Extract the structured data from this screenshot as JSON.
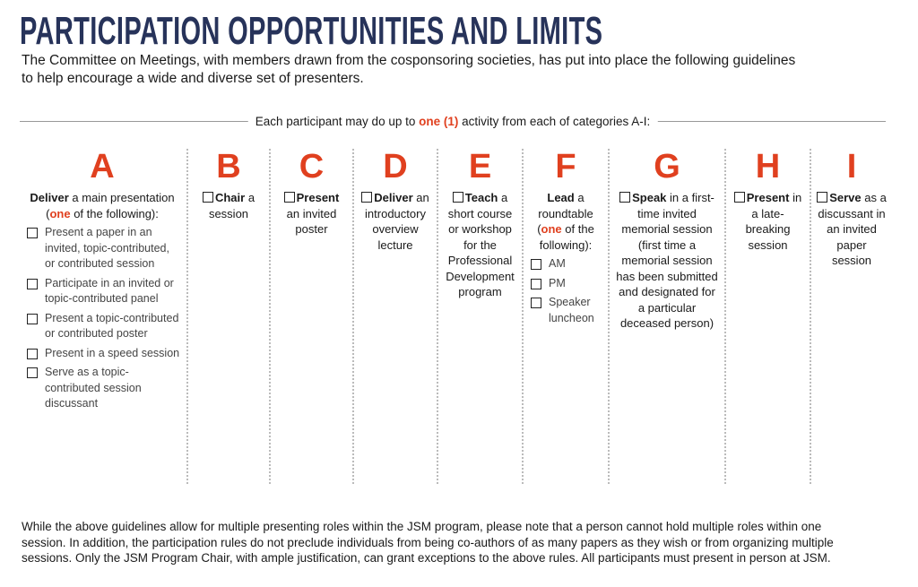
{
  "title": "PARTICIPATION OPPORTUNITIES AND LIMITS",
  "intro": "The Committee on Meetings, with members drawn from the cosponsoring societies, has put into place the following guidelines to help encourage a wide and diverse set of presenters.",
  "rule": {
    "before": "Each participant may do up to",
    "highlight": "one (1)",
    "after": "activity from each of categories A-I:"
  },
  "columns": [
    {
      "letter": "A",
      "bold": "Deliver",
      "text": "a main presentation",
      "choice": {
        "open": "(",
        "em": "one",
        "close": "of the following):"
      },
      "options": [
        "Present a paper in an invited, topic-contributed, or contributed session",
        "Participate in an invited or topic-contributed panel",
        "Present a topic-contributed or contributed poster",
        "Present in a speed session",
        "Serve as a topic-contributed session discussant"
      ]
    },
    {
      "letter": "B",
      "bold": "Chair",
      "text": "a session"
    },
    {
      "letter": "C",
      "bold": "Present",
      "text": "an invited poster"
    },
    {
      "letter": "D",
      "bold": "Deliver",
      "text": "an introductory overview lecture"
    },
    {
      "letter": "E",
      "bold": "Teach",
      "text": "a short course or workshop for the Professional Development program"
    },
    {
      "letter": "F",
      "bold": "Lead",
      "text": "a roundtable",
      "choice": {
        "open": "(",
        "em": "one",
        "close": "of the following):"
      },
      "options": [
        "AM",
        "PM",
        "Speaker luncheon"
      ]
    },
    {
      "letter": "G",
      "bold": "Speak",
      "text": "in a first-time invited memorial session (first time a memorial session has been submitted and designated for a particular deceased person)"
    },
    {
      "letter": "H",
      "bold": "Present",
      "text": "in a late-breaking session"
    },
    {
      "letter": "I",
      "bold": "Serve",
      "text": "as a discussant in an invited paper session"
    }
  ],
  "footer": "While the above guidelines allow for multiple presenting roles within the JSM program, please note that a person cannot hold multiple roles within one session. In addition, the participation rules do not preclude individuals from being co-authors of as many papers as they wish or from organizing multiple sessions. Only the JSM Program Chair, with ample justification, can grant exceptions to the above rules. All participants must present in person at JSM."
}
